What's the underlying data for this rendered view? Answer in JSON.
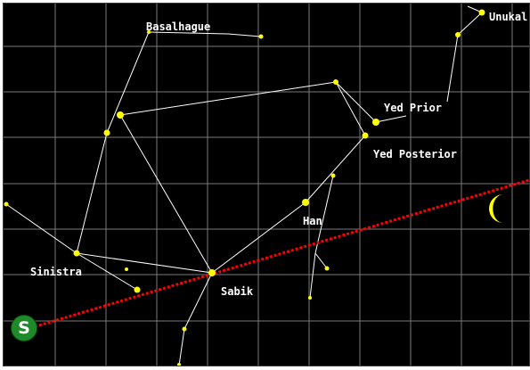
{
  "star_labels": {
    "basalhague": "Basalhague",
    "unukal": "Unukal",
    "yed_prior": "Yed Prior",
    "yed_posterior": "Yed Posterior",
    "han": "Han",
    "sinistra": "Sinistra",
    "sabik": "Sabik"
  },
  "sun_marker": {
    "letter": "S"
  },
  "colors": {
    "background": "#000000",
    "grid": "#7a7a7a",
    "constellation_lines": "#ffffff",
    "stars": "#ffff00",
    "ecliptic": "#ff0000",
    "sun_marker": "#1f8a2a",
    "moon": "#ffff00"
  },
  "icons": {
    "sun": "green-circle-S",
    "moon": "crescent-moon-icon"
  }
}
